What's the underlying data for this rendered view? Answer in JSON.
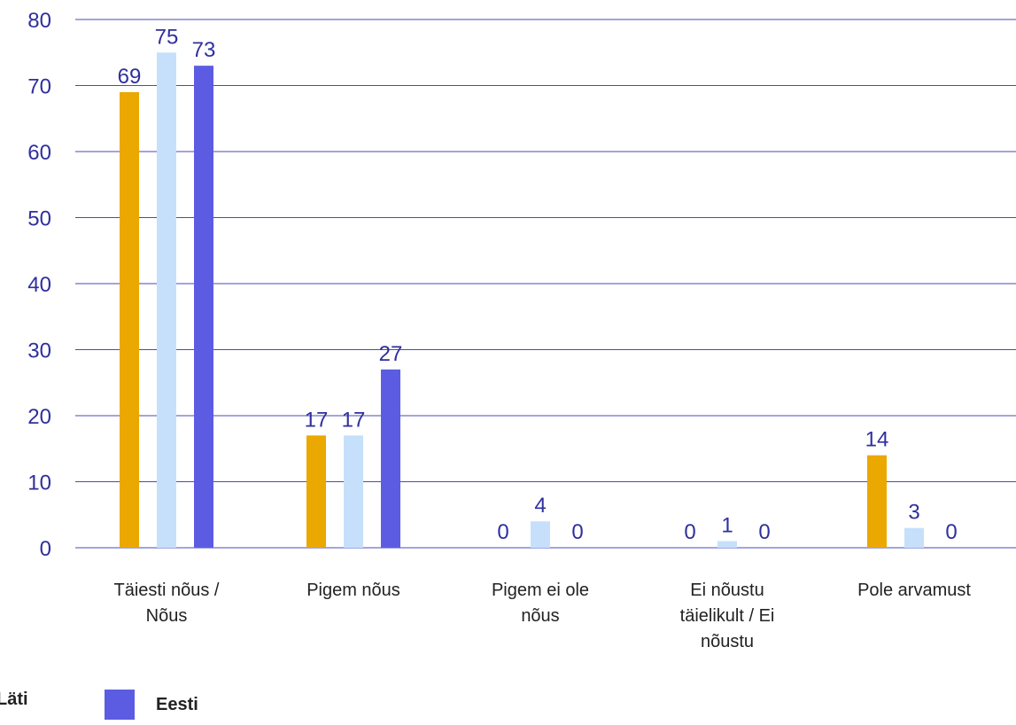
{
  "chart_data": {
    "type": "bar",
    "title": "",
    "xlabel": "",
    "ylabel": "",
    "ylim": [
      0,
      80
    ],
    "yticks": [
      0,
      10,
      20,
      30,
      40,
      50,
      60,
      70,
      80
    ],
    "grid": true,
    "legend_position": "bottom-left",
    "categories": [
      "Täiesti nõus / Nõus",
      "Pigem nõus",
      "Pigem ei ole nõus",
      "Ei nõustu täielikult / Ei nõustu",
      "Pole arvamust"
    ],
    "series": [
      {
        "name": "Läti",
        "color": "#eaa800",
        "values": [
          69,
          17,
          0,
          0,
          14
        ],
        "labels": [
          "69",
          "17",
          "0",
          "0",
          "14"
        ]
      },
      {
        "name": "",
        "color": "#c6e0fb",
        "values": [
          75,
          17,
          4,
          1,
          3
        ],
        "labels": [
          "75",
          "17",
          "4",
          "1",
          "3"
        ]
      },
      {
        "name": "Eesti",
        "color": "#5c5ce3",
        "values": [
          73,
          27,
          0,
          0,
          0
        ],
        "labels": [
          "73",
          "27",
          "0",
          "0",
          "0"
        ]
      }
    ],
    "label_color": "#2f2f9e",
    "grid_color": "#4a4ab8"
  },
  "legend": {
    "items": [
      {
        "label": "Läti",
        "color": "#eaa800"
      },
      {
        "label": "Eesti",
        "color": "#5c5ce3"
      }
    ]
  }
}
